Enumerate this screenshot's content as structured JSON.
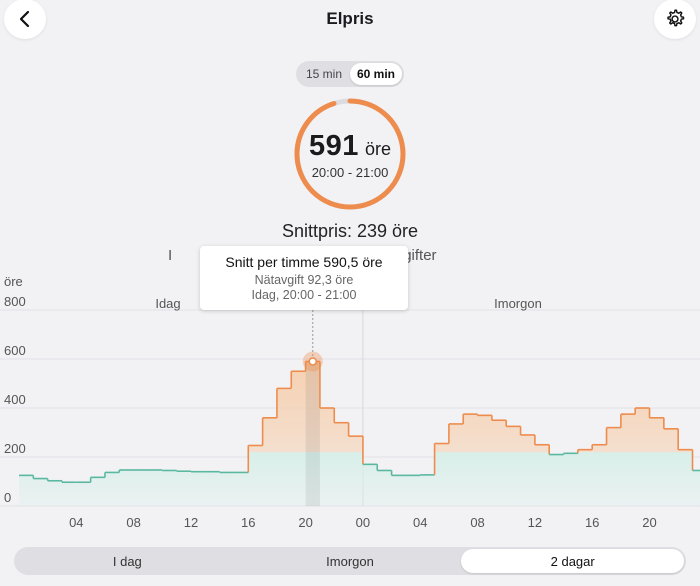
{
  "header": {
    "title": "Elpris",
    "back_icon": "chevron-left-icon",
    "settings_icon": "gear-icon"
  },
  "resolution": {
    "options": [
      "15 min",
      "60 min"
    ],
    "selected": "60 min"
  },
  "current": {
    "value": "591",
    "unit": "öre",
    "time": "20:00 - 21:00"
  },
  "summary": {
    "average": "Snittpris: 239 öre",
    "sub_left": "I",
    "sub_right": "n nätavgifter"
  },
  "tooltip": {
    "title": "Snitt per timme 590,5 öre",
    "fee": "Nätavgift 92,3 öre",
    "time": "Idag, 20:00 - 21:00"
  },
  "period": {
    "options": [
      "I dag",
      "Imorgon",
      "2 dagar"
    ],
    "selected": "2 dagar"
  },
  "colors": {
    "accent": "#ed8c4c",
    "green": "#5ab8a0",
    "orange_fill": "#f6cfae",
    "green_fill": "#d8efe9"
  },
  "chart_data": {
    "type": "area",
    "ylabel": "öre",
    "ylim": [
      0,
      800
    ],
    "yticks": [
      0,
      200,
      400,
      600,
      800
    ],
    "day_labels": [
      "Idag",
      "Imorgon"
    ],
    "xticks": [
      "04",
      "08",
      "12",
      "16",
      "20",
      "00",
      "04",
      "08",
      "12",
      "16",
      "20"
    ],
    "highlight_hour": 20,
    "x": [
      0,
      1,
      2,
      3,
      4,
      5,
      6,
      7,
      8,
      9,
      10,
      11,
      12,
      13,
      14,
      15,
      16,
      17,
      18,
      19,
      20,
      21,
      22,
      23,
      24,
      25,
      26,
      27,
      28,
      29,
      30,
      31,
      32,
      33,
      34,
      35,
      36,
      37,
      38,
      39,
      40,
      41,
      42,
      43,
      44,
      45,
      46,
      47
    ],
    "values": [
      125,
      112,
      103,
      97,
      97,
      117,
      137,
      147,
      147,
      147,
      145,
      142,
      140,
      140,
      137,
      137,
      247,
      360,
      480,
      550,
      590,
      400,
      340,
      285,
      170,
      145,
      125,
      125,
      127,
      255,
      335,
      375,
      370,
      350,
      325,
      290,
      250,
      210,
      215,
      230,
      250,
      320,
      375,
      400,
      360,
      315,
      230,
      145
    ],
    "series": [
      {
        "name": "Nätavgift",
        "values": [
          125,
          112,
          103,
          97,
          97,
          117,
          137,
          147,
          147,
          147,
          145,
          142,
          140,
          140,
          137,
          137,
          220,
          220,
          220,
          220,
          220,
          220,
          220,
          220,
          170,
          145,
          125,
          125,
          127,
          220,
          220,
          220,
          220,
          220,
          220,
          220,
          220,
          210,
          215,
          220,
          220,
          220,
          220,
          220,
          220,
          220,
          220,
          145
        ]
      }
    ]
  }
}
